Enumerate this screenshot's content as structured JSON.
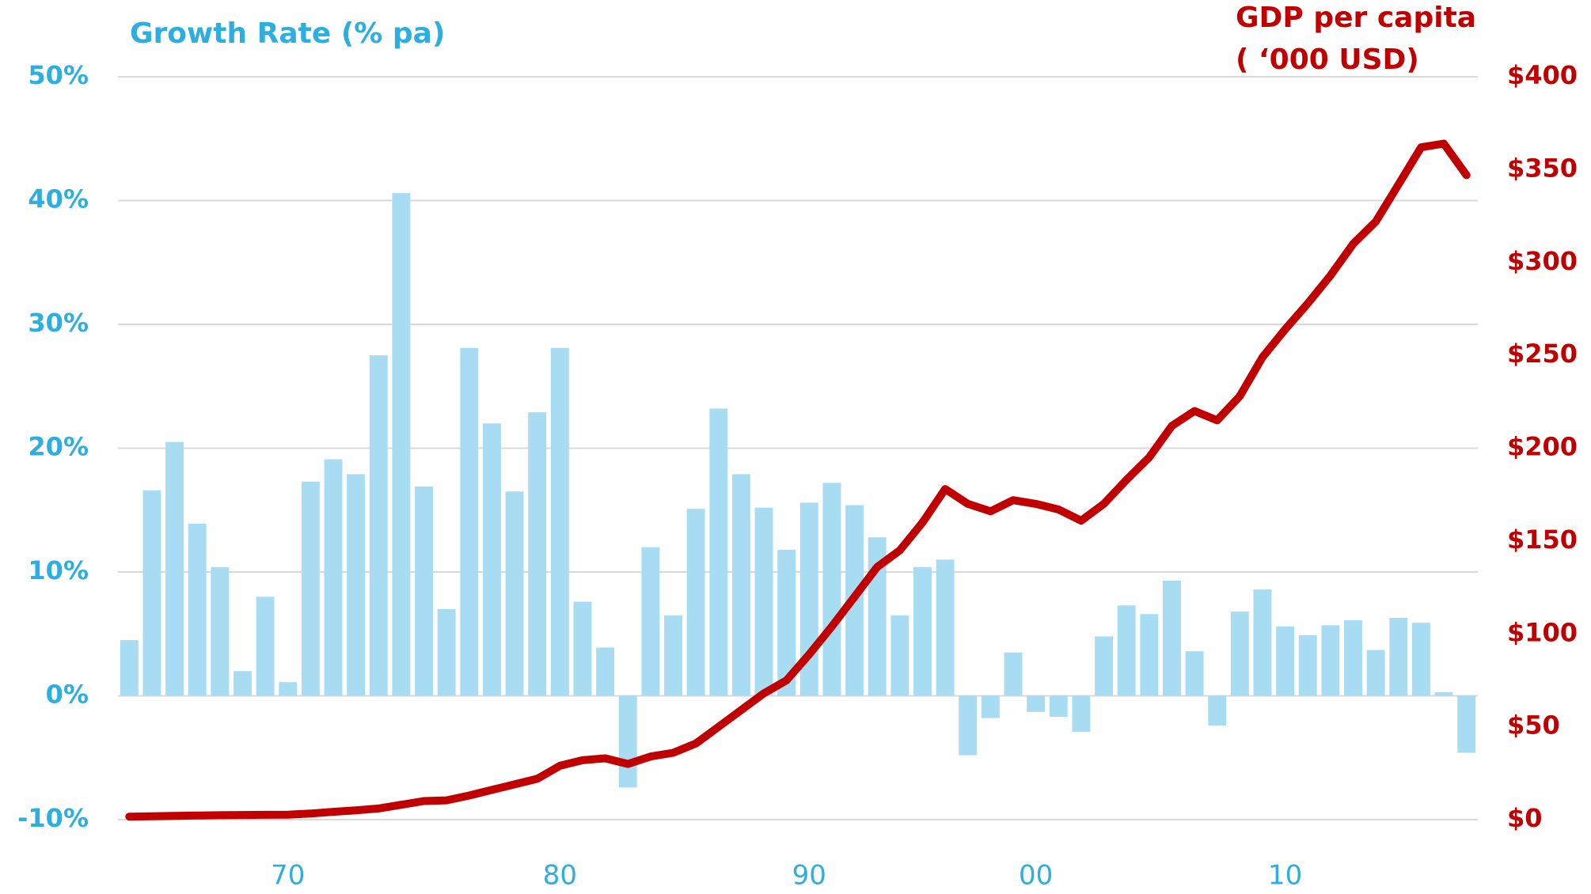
{
  "chart_data": {
    "type": "bar_line",
    "ylabel": "Growth Rate (% pa)",
    "y2label": [
      "GDP per capita",
      "( ‘000 USD)"
    ],
    "categories": [
      null,
      null,
      null,
      null,
      null,
      null,
      null,
      "70",
      null,
      null,
      null,
      null,
      null,
      null,
      null,
      null,
      null,
      null,
      null,
      "80",
      null,
      null,
      null,
      null,
      null,
      null,
      null,
      null,
      null,
      null,
      "90",
      null,
      null,
      null,
      null,
      null,
      null,
      null,
      null,
      null,
      "00",
      null,
      null,
      null,
      null,
      null,
      null,
      null,
      null,
      null,
      null,
      "10",
      null,
      null,
      null,
      null,
      null,
      null,
      null,
      null
    ],
    "series": [
      {
        "name": "Growth Rate",
        "color": "#a8dcf2",
        "axis": "y",
        "values": [
          4.5,
          16.6,
          20.5,
          13.9,
          10.4,
          2.0,
          8.0,
          1.1,
          17.3,
          19.1,
          17.9,
          27.5,
          40.6,
          16.9,
          7.0,
          28.1,
          22.0,
          16.5,
          22.9,
          28.1,
          7.6,
          3.9,
          -7.4,
          12.0,
          6.5,
          15.1,
          23.2,
          17.9,
          15.2,
          11.8,
          15.6,
          17.2,
          15.4,
          12.8,
          6.5,
          10.4,
          11.0,
          -4.8,
          -1.8,
          3.5,
          -1.3,
          -1.7,
          -2.9,
          4.8,
          7.3,
          6.6,
          9.3,
          3.6,
          -2.4,
          6.8,
          8.6,
          5.6,
          4.9,
          5.7,
          6.1,
          3.7,
          6.3,
          5.9,
          0.3,
          -4.6
        ]
      },
      {
        "name": "GDP per capita",
        "color": "#c00000",
        "axis": "y2",
        "values": [
          1.6,
          1.8,
          2.0,
          2.2,
          2.4,
          2.5,
          2.6,
          2.7,
          3.3,
          4.2,
          5,
          6,
          8,
          10,
          10.4,
          13,
          16,
          19,
          22,
          29,
          32,
          33,
          30,
          34,
          36,
          41,
          50,
          59,
          68,
          75,
          89,
          104,
          120,
          136,
          145,
          160,
          178,
          170,
          166,
          172,
          170,
          167,
          161,
          170,
          183,
          195,
          212,
          220,
          215,
          228,
          249,
          264,
          278,
          293,
          310,
          322,
          342,
          362,
          364,
          347
        ]
      }
    ],
    "ylim": [
      -10,
      50
    ],
    "yticks": [
      {
        "value": -10,
        "label": "-10%"
      },
      {
        "value": 0,
        "label": "0%"
      },
      {
        "value": 10,
        "label": "10%"
      },
      {
        "value": 20,
        "label": "20%"
      },
      {
        "value": 30,
        "label": "30%"
      },
      {
        "value": 40,
        "label": "40%"
      },
      {
        "value": 50,
        "label": "50%"
      }
    ],
    "y2lim": [
      0,
      400
    ],
    "y2ticks": [
      {
        "value": 0,
        "label": "$0"
      },
      {
        "value": 50,
        "label": "$50"
      },
      {
        "value": 100,
        "label": "$100"
      },
      {
        "value": 150,
        "label": "$150"
      },
      {
        "value": 200,
        "label": "$200"
      },
      {
        "value": 250,
        "label": "$250"
      },
      {
        "value": 300,
        "label": "$300"
      },
      {
        "value": 350,
        "label": "$350"
      },
      {
        "value": 400,
        "label": "$400"
      }
    ],
    "grid": true
  }
}
